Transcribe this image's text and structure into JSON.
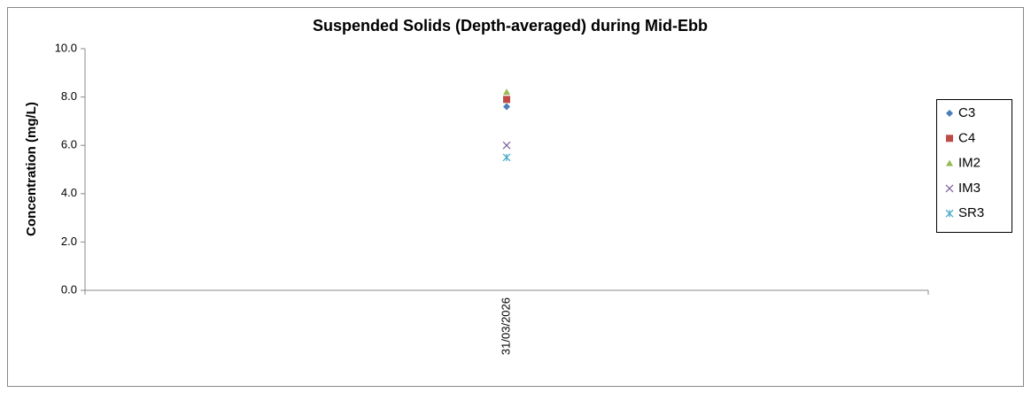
{
  "chart_data": {
    "type": "line",
    "title": "Suspended Solids (Depth-averaged) during Mid-Ebb",
    "y_label": "Concentration (mg/L)",
    "categories": [
      "31/03/2026"
    ],
    "series": [
      {
        "name": "C3",
        "color": "#4a7ebb",
        "marker": "diamond",
        "values": [
          7.6
        ]
      },
      {
        "name": "C4",
        "color": "#be4b48",
        "marker": "square",
        "values": [
          7.9
        ]
      },
      {
        "name": "IM2",
        "color": "#98b954",
        "marker": "triangle",
        "values": [
          8.2
        ]
      },
      {
        "name": "IM3",
        "color": "#7d60a0",
        "marker": "x",
        "values": [
          6.0
        ]
      },
      {
        "name": "SR3",
        "color": "#46aac5",
        "marker": "star",
        "values": [
          5.5
        ]
      }
    ],
    "ylim": [
      0,
      10
    ],
    "yticks": [
      {
        "value": 0,
        "label": "0.0"
      },
      {
        "value": 2,
        "label": "2.0"
      },
      {
        "value": 4,
        "label": "4.0"
      },
      {
        "value": 6,
        "label": "6.0"
      },
      {
        "value": 8,
        "label": "8.0"
      },
      {
        "value": 10,
        "label": "10.0"
      }
    ],
    "legend": "right"
  }
}
